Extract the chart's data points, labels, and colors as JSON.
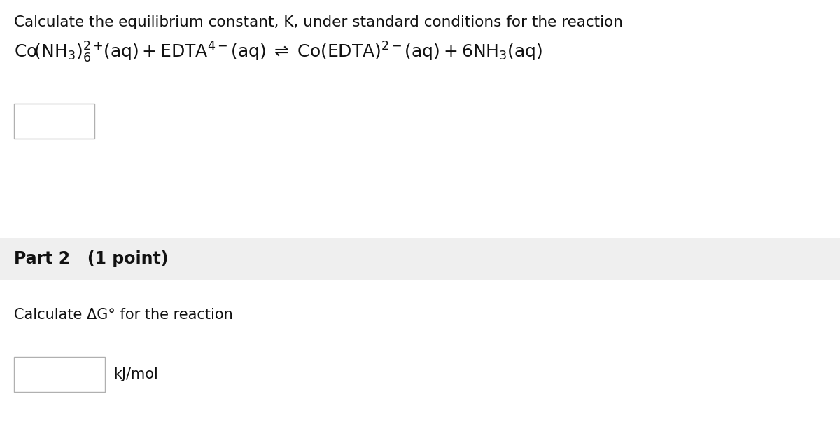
{
  "bg_color": "#ffffff",
  "part2_bg_color": "#efefef",
  "title_text": "Calculate the equilibrium constant, K, under standard conditions for the reaction",
  "part2_label": "Part 2   (1 point)",
  "part2_sub": "Calculate ΔG° for the reaction",
  "unit_label": "kJ/mol",
  "title_fontsize": 15.5,
  "reaction_fontsize": 18,
  "part2_label_fontsize": 17,
  "part2_sub_fontsize": 15,
  "unit_fontsize": 15,
  "text_color": "#111111"
}
